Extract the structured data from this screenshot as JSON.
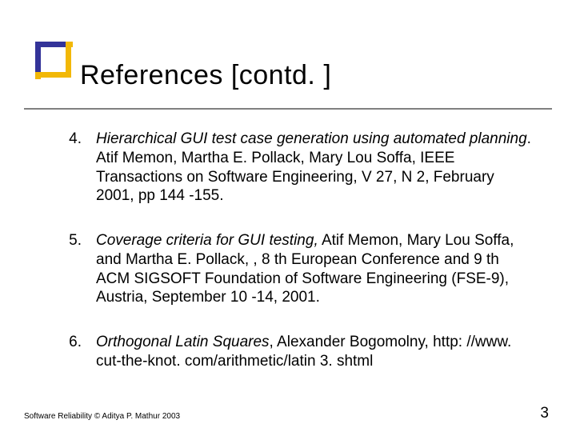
{
  "title": "References [contd. ]",
  "references": [
    {
      "num": "4.",
      "italic": "Hierarchical GUI test case generation using automated planning",
      "rest": ". Atif Memon, Martha E. Pollack, Mary Lou Soffa, IEEE Transactions on Software Engineering, V 27, N 2, February 2001, pp 144 -155."
    },
    {
      "num": "5.",
      "italic": "Coverage criteria for GUI testing,",
      "rest": " Atif Memon, Mary Lou Soffa, and Martha E. Pollack, , 8 th European Conference and 9 th ACM SIGSOFT Foundation of Software Engineering (FSE-9), Austria, September 10 -14, 2001."
    },
    {
      "num": "6.",
      "italic": "Orthogonal Latin Squares",
      "rest": ", Alexander Bogomolny, http: //www. cut-the-knot. com/arithmetic/latin 3. shtml"
    }
  ],
  "footer": "Software Reliability © Aditya P. Mathur 2003",
  "page_number": "3",
  "colors": {
    "rule": "#808080",
    "box_dark": "#333399",
    "box_gold": "#f2b807",
    "text": "#000000",
    "background": "#ffffff"
  }
}
